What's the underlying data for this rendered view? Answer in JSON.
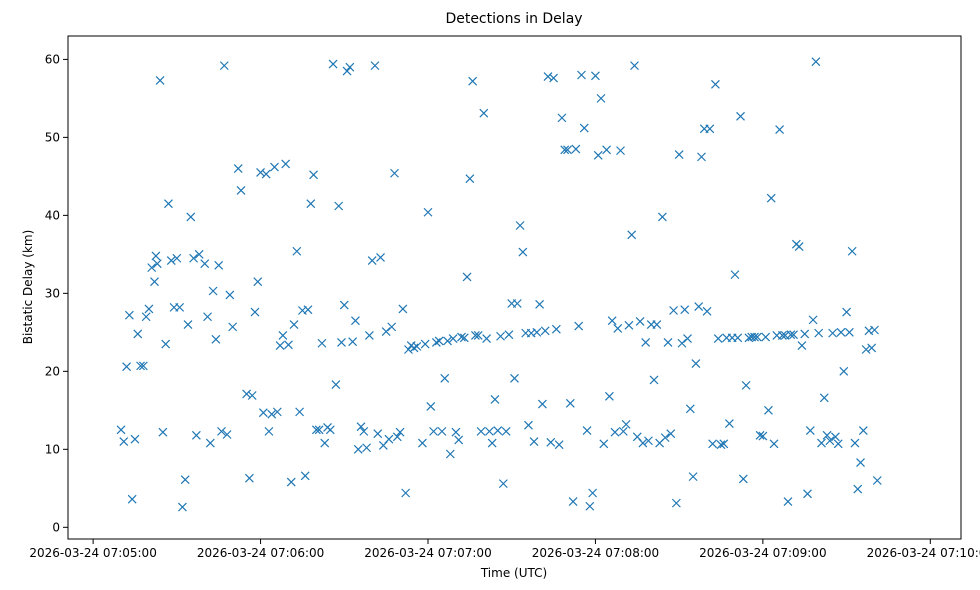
{
  "chart_data": {
    "type": "scatter",
    "title": "Detections in Delay",
    "xlabel": "Time (UTC)",
    "ylabel": "Bistatic Delay (km)",
    "marker": "x",
    "color": "#1f77b4",
    "x_unit": "seconds since 2026-03-24 07:05:00",
    "xlim": [
      -9,
      311
    ],
    "ylim": [
      -1.5,
      63
    ],
    "x_ticks": [
      {
        "value": 0,
        "label": "2026-03-24 07:05:00"
      },
      {
        "value": 60,
        "label": "2026-03-24 07:06:00"
      },
      {
        "value": 120,
        "label": "2026-03-24 07:07:00"
      },
      {
        "value": 180,
        "label": "2026-03-24 07:08:00"
      },
      {
        "value": 240,
        "label": "2026-03-24 07:09:00"
      },
      {
        "value": 300,
        "label": "2026-03-24 07:10:00"
      }
    ],
    "y_ticks": [
      {
        "value": 0,
        "label": "0"
      },
      {
        "value": 10,
        "label": "10"
      },
      {
        "value": 20,
        "label": "20"
      },
      {
        "value": 30,
        "label": "30"
      },
      {
        "value": 40,
        "label": "40"
      },
      {
        "value": 50,
        "label": "50"
      },
      {
        "value": 60,
        "label": "60"
      }
    ],
    "series": [
      {
        "name": "Detections",
        "points": [
          [
            10,
            12.5
          ],
          [
            11,
            11
          ],
          [
            12,
            20.6
          ],
          [
            13,
            27.2
          ],
          [
            14,
            3.6
          ],
          [
            15,
            11.3
          ],
          [
            16,
            24.8
          ],
          [
            17,
            20.7
          ],
          [
            18,
            20.7
          ],
          [
            19,
            27
          ],
          [
            20,
            28
          ],
          [
            21,
            33.3
          ],
          [
            22,
            31.5
          ],
          [
            22.5,
            34.8
          ],
          [
            23,
            33.8
          ],
          [
            24,
            57.3
          ],
          [
            25,
            12.2
          ],
          [
            26,
            23.5
          ],
          [
            27,
            41.5
          ],
          [
            28,
            34.2
          ],
          [
            29,
            28.2
          ],
          [
            30,
            34.5
          ],
          [
            31,
            28.2
          ],
          [
            32,
            2.6
          ],
          [
            33,
            6.1
          ],
          [
            34,
            26
          ],
          [
            35,
            39.8
          ],
          [
            36,
            34.5
          ],
          [
            37,
            11.8
          ],
          [
            38,
            35
          ],
          [
            40,
            33.8
          ],
          [
            41,
            27
          ],
          [
            42,
            10.8
          ],
          [
            43,
            30.3
          ],
          [
            44,
            24.1
          ],
          [
            45,
            33.6
          ],
          [
            46,
            12.3
          ],
          [
            47,
            59.2
          ],
          [
            48,
            11.9
          ],
          [
            49,
            29.8
          ],
          [
            50,
            25.7
          ],
          [
            52,
            46
          ],
          [
            53,
            43.2
          ],
          [
            55,
            17.1
          ],
          [
            56,
            6.3
          ],
          [
            57,
            16.9
          ],
          [
            58,
            27.6
          ],
          [
            59,
            31.5
          ],
          [
            60,
            45.5
          ],
          [
            61,
            14.7
          ],
          [
            62,
            45.3
          ],
          [
            63,
            12.3
          ],
          [
            64,
            14.5
          ],
          [
            65,
            46.2
          ],
          [
            66,
            14.8
          ],
          [
            67,
            23.3
          ],
          [
            68,
            24.6
          ],
          [
            69,
            46.6
          ],
          [
            70,
            23.4
          ],
          [
            71,
            5.8
          ],
          [
            72,
            26
          ],
          [
            73,
            35.4
          ],
          [
            74,
            14.8
          ],
          [
            75,
            27.8
          ],
          [
            76,
            6.6
          ],
          [
            77,
            27.9
          ],
          [
            78,
            41.5
          ],
          [
            79,
            45.2
          ],
          [
            80,
            12.5
          ],
          [
            81,
            12.5
          ],
          [
            82,
            23.6
          ],
          [
            83,
            10.8
          ],
          [
            84,
            12.8
          ],
          [
            85,
            12.5
          ],
          [
            86,
            59.4
          ],
          [
            87,
            18.3
          ],
          [
            88,
            41.2
          ],
          [
            89,
            23.7
          ],
          [
            90,
            28.5
          ],
          [
            91,
            58.5
          ],
          [
            92,
            59
          ],
          [
            93,
            23.8
          ],
          [
            94,
            26.5
          ],
          [
            95,
            10
          ],
          [
            96,
            12.9
          ],
          [
            97,
            12.3
          ],
          [
            98,
            10.2
          ],
          [
            99,
            24.6
          ],
          [
            100,
            34.2
          ],
          [
            101,
            59.2
          ],
          [
            102,
            12
          ],
          [
            103,
            34.6
          ],
          [
            104,
            10.5
          ],
          [
            105,
            25.1
          ],
          [
            106,
            11.3
          ],
          [
            107,
            25.7
          ],
          [
            108,
            45.4
          ],
          [
            109,
            11.6
          ],
          [
            110,
            12.2
          ],
          [
            111,
            28
          ],
          [
            112,
            4.4
          ],
          [
            113,
            22.8
          ],
          [
            114,
            23.3
          ],
          [
            115,
            23
          ],
          [
            116,
            23.2
          ],
          [
            118,
            10.8
          ],
          [
            119,
            23.5
          ],
          [
            120,
            40.4
          ],
          [
            121,
            15.5
          ],
          [
            122,
            12.3
          ],
          [
            123,
            23.7
          ],
          [
            124,
            23.9
          ],
          [
            125,
            12.3
          ],
          [
            126,
            19.1
          ],
          [
            127,
            23.9
          ],
          [
            128,
            9.4
          ],
          [
            129,
            24.2
          ],
          [
            130,
            12.2
          ],
          [
            131,
            11.2
          ],
          [
            132,
            24.4
          ],
          [
            133,
            24.3
          ],
          [
            134,
            32.1
          ],
          [
            135,
            44.7
          ],
          [
            136,
            57.2
          ],
          [
            137,
            24.6
          ],
          [
            138,
            24.6
          ],
          [
            139,
            12.3
          ],
          [
            140,
            53.1
          ],
          [
            141,
            24.2
          ],
          [
            142,
            12.3
          ],
          [
            143,
            10.8
          ],
          [
            144,
            16.4
          ],
          [
            145,
            12.4
          ],
          [
            146,
            24.5
          ],
          [
            147,
            5.6
          ],
          [
            148,
            12.3
          ],
          [
            149,
            24.7
          ],
          [
            150,
            28.7
          ],
          [
            151,
            19.1
          ],
          [
            152,
            28.7
          ],
          [
            153,
            38.7
          ],
          [
            154,
            35.3
          ],
          [
            155,
            24.9
          ],
          [
            156,
            13.1
          ],
          [
            157,
            24.9
          ],
          [
            158,
            11
          ],
          [
            159,
            25
          ],
          [
            160,
            28.6
          ],
          [
            161,
            15.8
          ],
          [
            162,
            25.2
          ],
          [
            163,
            57.8
          ],
          [
            164,
            10.9
          ],
          [
            165,
            57.6
          ],
          [
            166,
            25.4
          ],
          [
            167,
            10.6
          ],
          [
            168,
            52.5
          ],
          [
            169,
            48.4
          ],
          [
            170,
            48.4
          ],
          [
            171,
            15.9
          ],
          [
            172,
            3.3
          ],
          [
            173,
            48.5
          ],
          [
            174,
            25.8
          ],
          [
            175,
            58
          ],
          [
            176,
            51.2
          ],
          [
            177,
            12.4
          ],
          [
            178,
            2.7
          ],
          [
            179,
            4.4
          ],
          [
            180,
            57.9
          ],
          [
            181,
            47.7
          ],
          [
            182,
            55
          ],
          [
            183,
            10.7
          ],
          [
            184,
            48.4
          ],
          [
            185,
            16.8
          ],
          [
            186,
            26.5
          ],
          [
            187,
            12.2
          ],
          [
            188,
            25.5
          ],
          [
            189,
            48.3
          ],
          [
            190,
            12.3
          ],
          [
            191,
            13.2
          ],
          [
            192,
            25.9
          ],
          [
            193,
            37.5
          ],
          [
            194,
            59.2
          ],
          [
            195,
            11.6
          ],
          [
            196,
            26.4
          ],
          [
            197,
            10.8
          ],
          [
            198,
            23.7
          ],
          [
            199,
            11.1
          ],
          [
            200,
            26
          ],
          [
            201,
            18.9
          ],
          [
            202,
            26
          ],
          [
            203,
            10.8
          ],
          [
            204,
            39.8
          ],
          [
            205,
            11.5
          ],
          [
            206,
            23.7
          ],
          [
            207,
            12
          ],
          [
            208,
            27.8
          ],
          [
            209,
            3.1
          ],
          [
            210,
            47.8
          ],
          [
            211,
            23.6
          ],
          [
            212,
            27.9
          ],
          [
            213,
            24.2
          ],
          [
            214,
            15.2
          ],
          [
            215,
            6.5
          ],
          [
            216,
            21
          ],
          [
            217,
            28.3
          ],
          [
            218,
            47.5
          ],
          [
            219,
            51.1
          ],
          [
            220,
            27.7
          ],
          [
            221,
            51.1
          ],
          [
            222,
            10.7
          ],
          [
            223,
            56.8
          ],
          [
            224,
            24.2
          ],
          [
            225,
            10.6
          ],
          [
            226,
            10.7
          ],
          [
            227,
            24.3
          ],
          [
            228,
            13.3
          ],
          [
            229,
            24.3
          ],
          [
            230,
            32.4
          ],
          [
            231,
            24.3
          ],
          [
            232,
            52.7
          ],
          [
            233,
            6.2
          ],
          [
            234,
            18.2
          ],
          [
            235,
            24.3
          ],
          [
            236,
            24.4
          ],
          [
            237,
            24.4
          ],
          [
            238,
            24.4
          ],
          [
            239,
            11.8
          ],
          [
            240,
            11.7
          ],
          [
            241,
            24.4
          ],
          [
            242,
            15
          ],
          [
            243,
            42.2
          ],
          [
            244,
            10.7
          ],
          [
            245,
            24.6
          ],
          [
            246,
            51
          ],
          [
            247,
            24.6
          ],
          [
            248,
            24.6
          ],
          [
            249,
            3.3
          ],
          [
            250,
            24.7
          ],
          [
            251,
            24.7
          ],
          [
            252,
            36.3
          ],
          [
            253,
            36
          ],
          [
            254,
            23.3
          ],
          [
            255,
            24.8
          ],
          [
            256,
            4.3
          ],
          [
            257,
            12.4
          ],
          [
            258,
            26.6
          ],
          [
            259,
            59.7
          ],
          [
            260,
            24.9
          ],
          [
            261,
            10.8
          ],
          [
            262,
            16.6
          ],
          [
            263,
            11.8
          ],
          [
            264,
            11.1
          ],
          [
            265,
            24.9
          ],
          [
            266,
            11.6
          ],
          [
            267,
            10.7
          ],
          [
            268,
            25
          ],
          [
            269,
            20
          ],
          [
            270,
            27.6
          ],
          [
            271,
            25
          ],
          [
            272,
            35.4
          ],
          [
            273,
            10.8
          ],
          [
            274,
            4.9
          ],
          [
            275,
            8.3
          ],
          [
            276,
            12.4
          ],
          [
            277,
            22.8
          ],
          [
            278,
            25.2
          ],
          [
            279,
            23
          ],
          [
            280,
            25.3
          ],
          [
            281,
            6
          ]
        ]
      }
    ]
  }
}
